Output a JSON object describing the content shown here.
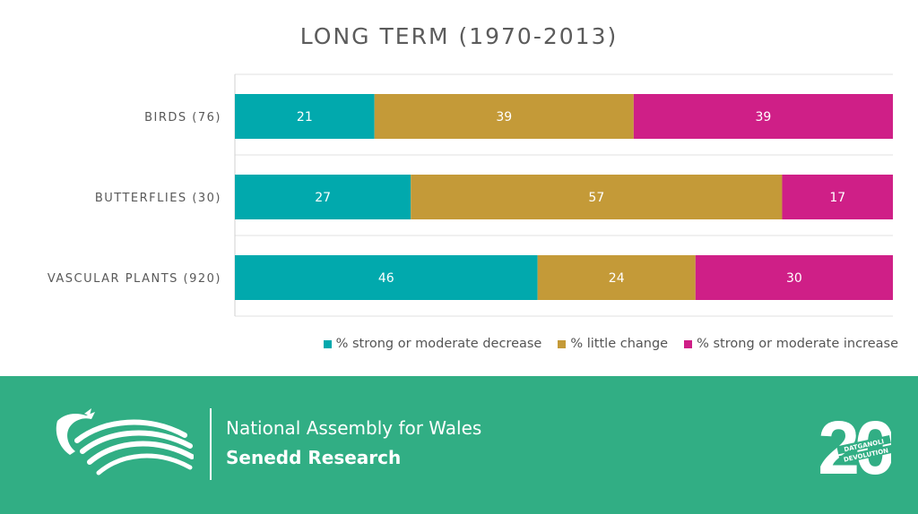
{
  "chart_data": {
    "type": "bar",
    "orientation": "horizontal",
    "stacked": true,
    "title": "LONG TERM (1970-2013)",
    "categories": [
      "BIRDS (76)",
      "BUTTERFLIES (30)",
      "VASCULAR PLANTS (920)"
    ],
    "series": [
      {
        "name": "% strong or moderate decrease",
        "values": [
          21,
          27,
          46
        ],
        "color": "#01a9ad"
      },
      {
        "name": "% little change",
        "values": [
          39,
          57,
          24
        ],
        "color": "#c49a38"
      },
      {
        "name": "% strong or moderate increase",
        "values": [
          39,
          17,
          30
        ],
        "color": "#cf1f87"
      }
    ],
    "legend_position": "bottom-right",
    "grid": true
  },
  "footer": {
    "background": "#31ae84",
    "organisation": "National Assembly for Wales",
    "department": "Senedd Research",
    "badge_number": "20",
    "badge_text_1": "DATGANOLI",
    "badge_text_2": "DEVOLUTION"
  }
}
